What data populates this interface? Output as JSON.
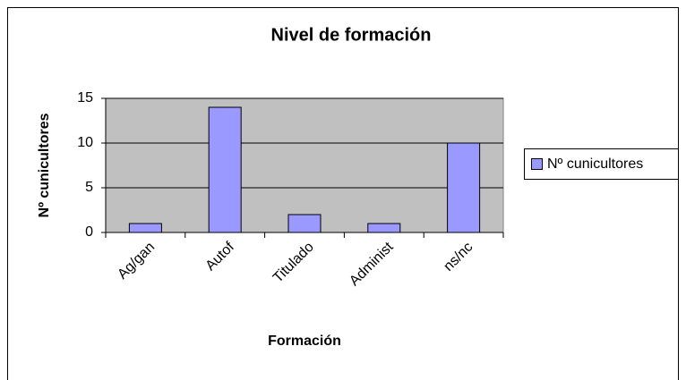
{
  "chart_data": {
    "type": "bar",
    "title": "Nivel de formación",
    "xlabel": "Formación",
    "ylabel": "Nº cunicultores",
    "categories": [
      "Ag/gan",
      "Autof",
      "Titulado",
      "Administ",
      "ns/nc"
    ],
    "series": [
      {
        "name": "Nº cunicultores",
        "color": "#9999ff",
        "values": [
          1,
          14,
          2,
          1,
          10
        ]
      }
    ],
    "ylim": [
      0,
      15
    ],
    "yticks": [
      0,
      5,
      10,
      15
    ],
    "grid": true,
    "legend": "right",
    "plot_background": "#c0c0c0"
  }
}
